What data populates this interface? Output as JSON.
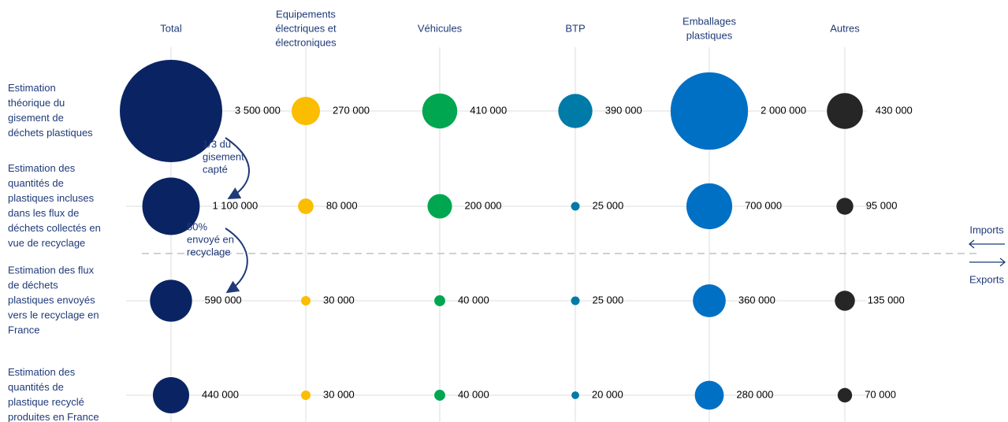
{
  "chart_data": {
    "type": "bubble",
    "columns": [
      [
        "Total"
      ],
      [
        "Equipements",
        "électriques et",
        "électroniques"
      ],
      [
        "Véhicules"
      ],
      [
        "BTP"
      ],
      [
        "Emballages",
        "plastiques"
      ],
      [
        "Autres"
      ]
    ],
    "rows": [
      [
        "Estimation",
        "théorique du",
        "gisement de",
        "déchets plastiques"
      ],
      [
        "Estimation des",
        "quantités de",
        "plastiques incluses",
        "dans les flux de",
        "déchets  collectés en",
        "vue de recyclage"
      ],
      [
        "Estimation des flux",
        "de déchets",
        "plastiques envoyés",
        "vers le recyclage en",
        "France"
      ],
      [
        "Estimation des",
        "quantités de",
        "plastique recyclé",
        "produites en France"
      ]
    ],
    "series": [
      {
        "color": "#0a2463",
        "values": [
          3500000,
          1100000,
          590000,
          440000
        ],
        "value_labels": [
          "3 500 000",
          "1 100 000",
          "590 000",
          "440 000"
        ]
      },
      {
        "color": "#fbbd00",
        "values": [
          270000,
          80000,
          30000,
          30000
        ],
        "value_labels": [
          "270 000",
          "80 000",
          "30 000",
          "30 000"
        ]
      },
      {
        "color": "#00a650",
        "values": [
          410000,
          200000,
          40000,
          40000
        ],
        "value_labels": [
          "410 000",
          "200 000",
          "40 000",
          "40 000"
        ]
      },
      {
        "color": "#007aa6",
        "values": [
          390000,
          25000,
          25000,
          20000
        ],
        "value_labels": [
          "390 000",
          "25 000",
          "25 000",
          "20 000"
        ]
      },
      {
        "color": "#0070c4",
        "values": [
          2000000,
          700000,
          360000,
          280000
        ],
        "value_labels": [
          "2 000 000",
          "700 000",
          "360 000",
          "280 000"
        ]
      },
      {
        "color": "#262626",
        "values": [
          430000,
          95000,
          135000,
          70000
        ],
        "value_labels": [
          "430 000",
          "95 000",
          "135 000",
          "70 000"
        ]
      }
    ],
    "annotations": [
      [
        "1/3 du",
        "gisement",
        "capté"
      ],
      [
        "50%",
        "envoyé en",
        "recyclage"
      ]
    ],
    "imports": "Imports",
    "exports": "Exports"
  }
}
